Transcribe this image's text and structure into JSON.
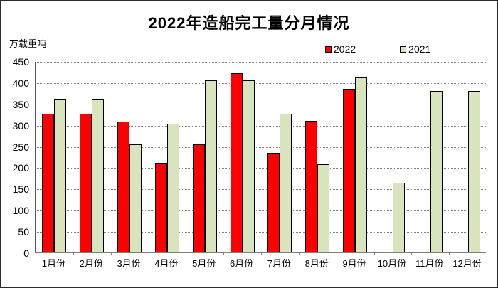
{
  "window": {
    "background": "#ffffff",
    "border_color": "#2b2b2b"
  },
  "chart_data": {
    "type": "bar",
    "title": "2022年造船完工量分月情况",
    "unit_label": "万载重吨",
    "categories": [
      "1月份",
      "2月份",
      "3月份",
      "4月份",
      "5月份",
      "6月份",
      "7月份",
      "8月份",
      "9月份",
      "10月份",
      "11月份",
      "12月份"
    ],
    "series": [
      {
        "name": "2022",
        "color": "#ff0000",
        "values": [
          327,
          327,
          308,
          210,
          255,
          422,
          234,
          309,
          385,
          null,
          null,
          null
        ]
      },
      {
        "name": "2021",
        "color": "#d8e4bc",
        "values": [
          361,
          361,
          255,
          302,
          405,
          405,
          326,
          207,
          413,
          164,
          380,
          380
        ]
      }
    ],
    "ylim": [
      0,
      450
    ],
    "ytick_step": 50,
    "yticks": [
      0,
      50,
      100,
      150,
      200,
      250,
      300,
      350,
      400,
      450
    ],
    "grid": "horizontal-dotted",
    "gridline_color": "#7f7f7f",
    "bar_border_color": "#000000",
    "legend_position": "top-right",
    "xlabel": "",
    "ylabel": "万载重吨"
  }
}
